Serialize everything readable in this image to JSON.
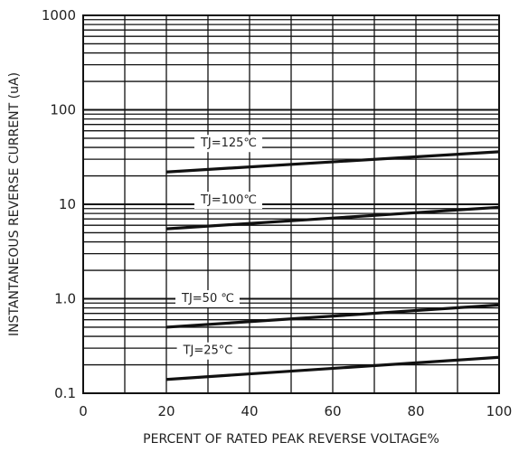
{
  "chart_data": {
    "type": "line",
    "xlabel": "PERCENT OF RATED PEAK REVERSE VOLTAGE%",
    "ylabel": "INSTANTANEOUS REVERSE CURRENT    (uA)",
    "xlim": [
      0,
      100
    ],
    "ylim": [
      0.1,
      1000
    ],
    "y_scale": "log",
    "grid": true,
    "x_ticks": [
      {
        "value": 0,
        "label": "0"
      },
      {
        "value": 20,
        "label": "20"
      },
      {
        "value": 40,
        "label": "40"
      },
      {
        "value": 60,
        "label": "60"
      },
      {
        "value": 80,
        "label": "80"
      },
      {
        "value": 100,
        "label": "100"
      }
    ],
    "y_ticks": [
      {
        "value": 0.1,
        "label": "0.1"
      },
      {
        "value": 1,
        "label": "1.0"
      },
      {
        "value": 10,
        "label": "10"
      },
      {
        "value": 100,
        "label": "100"
      },
      {
        "value": 1000,
        "label": "1000"
      }
    ],
    "series": [
      {
        "name": "TJ=125℃",
        "label_value": 35,
        "x": [
          20,
          100
        ],
        "y": [
          22,
          36
        ]
      },
      {
        "name": "TJ=100℃",
        "label_value": 35,
        "x": [
          20,
          100
        ],
        "y": [
          5.5,
          9.3
        ]
      },
      {
        "name": "TJ=50 ℃",
        "label_value": 30,
        "x": [
          20,
          100
        ],
        "y": [
          0.5,
          0.86
        ]
      },
      {
        "name": "TJ=25°C",
        "label_value": 30,
        "x": [
          20,
          100
        ],
        "y": [
          0.14,
          0.24
        ]
      }
    ]
  }
}
